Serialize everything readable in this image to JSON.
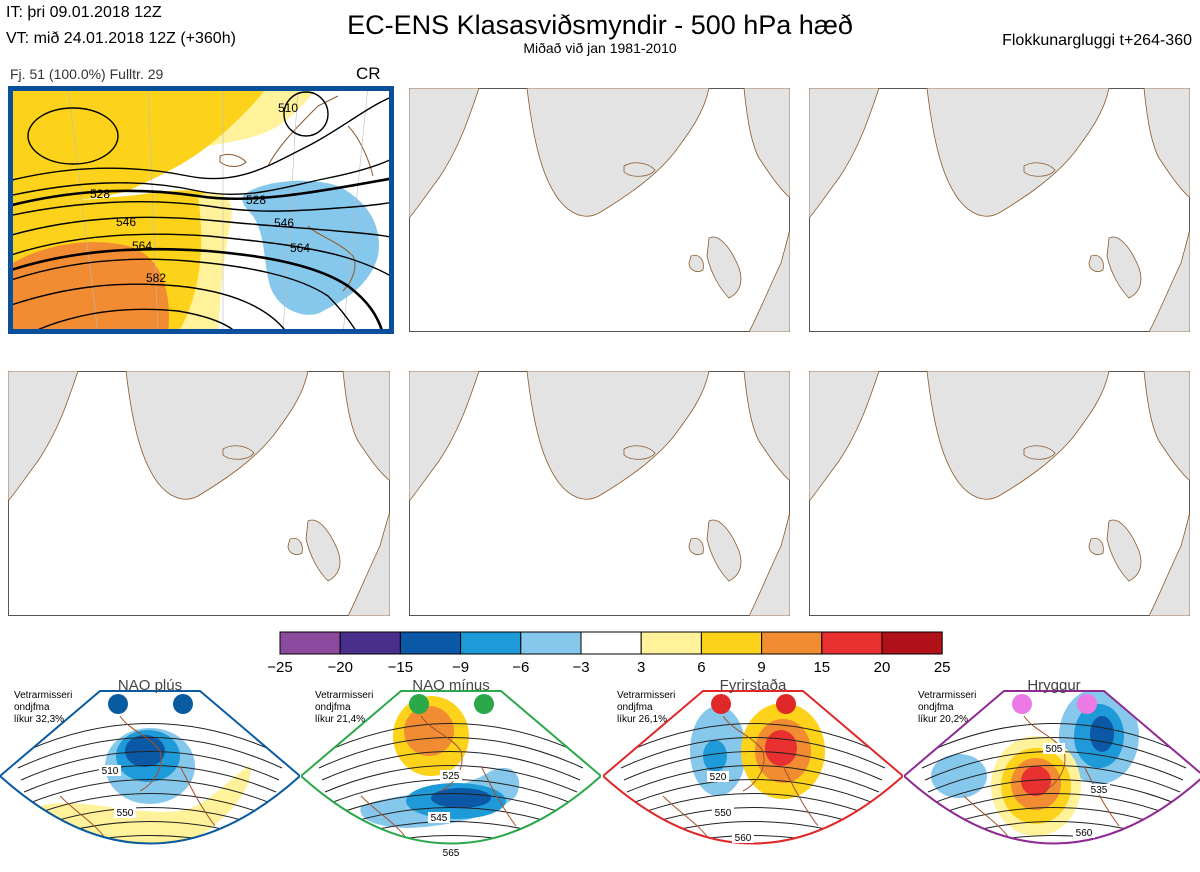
{
  "header": {
    "issue_time": "IT: þri 09.01.2018 12Z",
    "valid_time": "VT: mið 24.01.2018 12Z  (+360h)",
    "title": "EC-ENS Klasasviðsmyndir - 500 hPa hæð",
    "subtitle": "Miðað við jan 1981-2010",
    "window": "Flokkunargluggi t+264-360"
  },
  "cluster": {
    "info": "Fj. 51 (100.0%)   Fulltr. 29",
    "regime_code": "CR",
    "contour_labels": [
      "510",
      "528",
      "546",
      "564",
      "582",
      "528",
      "546",
      "564"
    ]
  },
  "colorbar": {
    "ticks": [
      "−25",
      "−20",
      "−15",
      "−9",
      "−6",
      "−3",
      "3",
      "6",
      "9",
      "15",
      "20",
      "25"
    ],
    "colors": [
      "#8c4a9e",
      "#4a2e8c",
      "#0b58a6",
      "#1e9ad8",
      "#86c8ec",
      "#ffffff",
      "#fff29a",
      "#fcd21a",
      "#f28c32",
      "#e83030",
      "#b01018"
    ]
  },
  "regimes": [
    {
      "name": "NAO plús",
      "season": "Vetrarmisseri",
      "type": "ondjfma",
      "prob": "líkur 32,3%",
      "color": "#0a5aa0",
      "dot": "#0a5aa0",
      "labels": [
        "510",
        "550"
      ]
    },
    {
      "name": "NAO mínus",
      "season": "Vetrarmisseri",
      "type": "ondjfma",
      "prob": "líkur 21,4%",
      "color": "#2aa84a",
      "dot": "#2aa84a",
      "labels": [
        "525",
        "545",
        "565"
      ]
    },
    {
      "name": "Fyrirstaða",
      "season": "Vetrarmisseri",
      "type": "ondjfma",
      "prob": "líkur 26,1%",
      "color": "#e02828",
      "dot": "#e02828",
      "labels": [
        "520",
        "550",
        "560"
      ]
    },
    {
      "name": "Hryggur",
      "season": "Vetrarmisseri",
      "type": "ondjfma",
      "prob": "líkur 20,2%",
      "color": "#8e2a92",
      "dot": "#ec7ae6",
      "labels": [
        "505",
        "535",
        "560"
      ]
    }
  ]
}
